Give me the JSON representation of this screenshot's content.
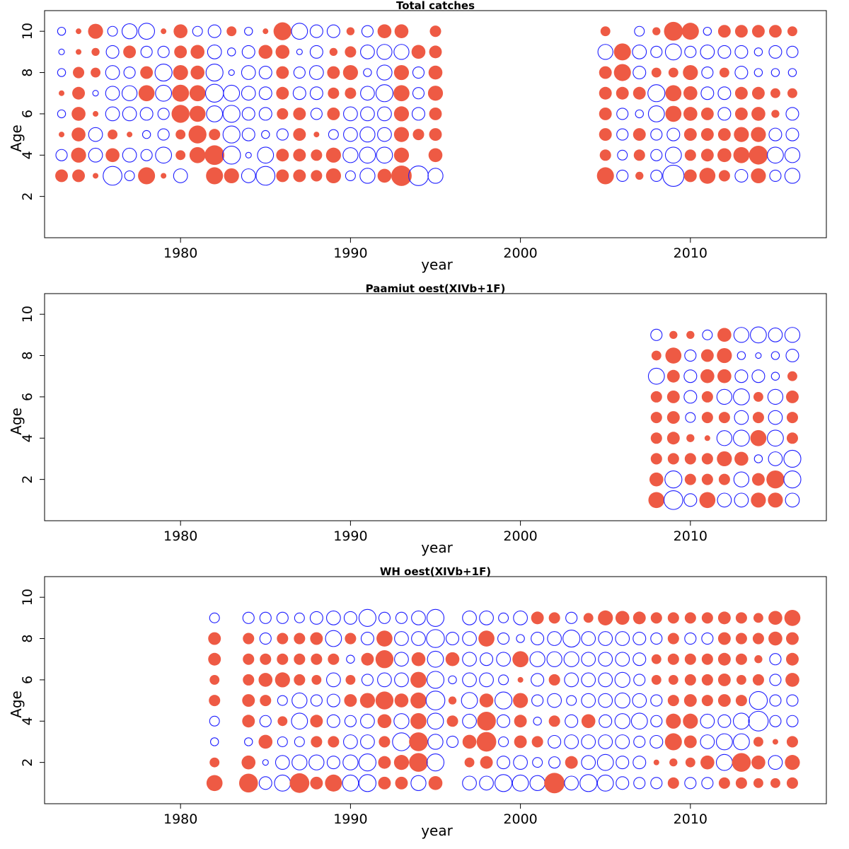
{
  "colors": {
    "positive": "#EE5A44",
    "negative": "#1F1FFF"
  },
  "chart_data": [
    {
      "type": "scatter",
      "subtype": "bubble (residuals)",
      "title": "Total catches",
      "xlabel": "year",
      "ylabel": "Age",
      "xlim": [
        1972,
        2018
      ],
      "ylim": [
        0,
        11
      ],
      "xticks": [
        "1980",
        "1990",
        "2000",
        "2010"
      ],
      "yticks": [
        "2",
        "4",
        "6",
        "8",
        "10"
      ],
      "grid": false,
      "years": [
        1973,
        1974,
        1975,
        1976,
        1977,
        1978,
        1979,
        1980,
        1981,
        1982,
        1983,
        1984,
        1985,
        1986,
        1987,
        1988,
        1989,
        1990,
        1991,
        1992,
        1993,
        1994,
        1995,
        2005,
        2006,
        2007,
        2008,
        2009,
        2010,
        2011,
        2012,
        2013,
        2014,
        2015,
        2016
      ],
      "ages": [
        3,
        4,
        5,
        6,
        7,
        8,
        9,
        10
      ],
      "residuals": [
        [
          0.5,
          -0.4,
          0.1,
          -0.2,
          0.1,
          -0.2,
          -0.1,
          -0.2
        ],
        [
          0.5,
          0.7,
          0.6,
          0.6,
          0.5,
          0.4,
          0.1,
          0.1
        ],
        [
          0.1,
          -0.6,
          -0.6,
          0.1,
          -0.1,
          0.3,
          0.2,
          0.7
        ],
        [
          -1.1,
          0.6,
          0.3,
          -0.6,
          -0.6,
          -0.6,
          -0.5,
          -0.3
        ],
        [
          -0.3,
          -0.6,
          0.1,
          -0.6,
          -0.7,
          -0.4,
          0.5,
          -0.7
        ],
        [
          0.9,
          -0.4,
          -0.2,
          -0.5,
          0.8,
          0.5,
          -0.4,
          -0.8
        ],
        [
          0.1,
          -0.8,
          -0.4,
          -0.4,
          -0.8,
          -0.9,
          -0.4,
          0.1
        ],
        [
          -0.6,
          0.3,
          0.3,
          1.0,
          0.9,
          0.7,
          0.5,
          0.6
        ],
        [
          0.0,
          0.8,
          1.0,
          0.8,
          0.8,
          0.6,
          0.6,
          -0.3
        ],
        [
          0.9,
          1.2,
          0.4,
          -0.8,
          -1.0,
          -0.9,
          -0.6,
          -0.5
        ],
        [
          0.7,
          -1.0,
          -0.9,
          -0.9,
          -0.8,
          -0.1,
          -0.2,
          0.3
        ],
        [
          -0.6,
          -0.1,
          -0.5,
          -0.5,
          -0.6,
          -0.6,
          -0.5,
          -0.2
        ],
        [
          -1.1,
          -0.8,
          -0.2,
          -0.5,
          -0.5,
          -0.5,
          0.6,
          0.1
        ],
        [
          0.5,
          0.5,
          -0.4,
          0.4,
          0.5,
          0.5,
          0.6,
          1.0
        ],
        [
          0.5,
          0.5,
          0.5,
          0.5,
          -0.5,
          -0.4,
          -0.1,
          -0.8
        ],
        [
          0.4,
          0.4,
          0.1,
          -0.4,
          -0.5,
          -0.6,
          -0.5,
          -0.5
        ],
        [
          0.7,
          0.7,
          -0.3,
          0.5,
          0.4,
          0.5,
          0.2,
          -0.5
        ],
        [
          -0.3,
          -0.7,
          -0.6,
          -0.6,
          0.4,
          0.7,
          0.4,
          0.2
        ],
        [
          -0.7,
          -0.8,
          -0.7,
          -0.6,
          -0.6,
          -0.2,
          -0.6,
          -0.4
        ],
        [
          0.6,
          -0.8,
          -0.6,
          -0.6,
          -0.9,
          -0.7,
          -0.7,
          0.6
        ],
        [
          1.3,
          0.7,
          0.7,
          0.7,
          0.8,
          0.7,
          -0.7,
          0.6
        ],
        [
          -1.2,
          0.0,
          0.4,
          -0.5,
          -0.4,
          -0.4,
          0.6,
          0.0
        ],
        [
          -0.7,
          0.6,
          0.5,
          0.5,
          0.7,
          0.6,
          0.5,
          0.4
        ],
        [
          0.9,
          0.4,
          0.5,
          0.5,
          0.5,
          0.5,
          -0.7,
          0.3
        ],
        [
          -0.4,
          -0.3,
          -0.4,
          -0.4,
          0.5,
          0.9,
          0.9,
          0.0
        ],
        [
          0.2,
          0.4,
          0.5,
          -0.2,
          0.5,
          -0.5,
          -0.6,
          -0.3
        ],
        [
          -0.4,
          -0.4,
          -0.4,
          -0.8,
          -0.9,
          0.3,
          -0.4,
          0.2
        ],
        [
          -1.4,
          -0.8,
          -0.5,
          0.8,
          0.8,
          0.3,
          -0.8,
          1.1
        ],
        [
          0.5,
          0.4,
          0.5,
          0.6,
          0.6,
          0.7,
          -0.4,
          0.9
        ],
        [
          0.8,
          0.5,
          0.5,
          0.5,
          -0.5,
          -0.4,
          -0.6,
          -0.2
        ],
        [
          0.4,
          0.6,
          0.5,
          -0.5,
          -0.5,
          0.3,
          -0.5,
          0.5
        ],
        [
          -0.5,
          0.8,
          0.7,
          0.5,
          0.5,
          -0.5,
          -0.5,
          0.5
        ],
        [
          0.7,
          1.1,
          0.7,
          0.6,
          0.5,
          -0.2,
          -0.2,
          0.5
        ],
        [
          -0.4,
          -0.8,
          -0.5,
          0.2,
          0.3,
          -0.2,
          -0.5,
          0.5
        ],
        [
          -0.7,
          -0.7,
          -0.5,
          -0.5,
          0.3,
          -0.2,
          -0.4,
          0.3
        ]
      ]
    },
    {
      "type": "scatter",
      "subtype": "bubble (residuals)",
      "title": "Paamiut    oest(XIVb+1F)",
      "xlabel": "year",
      "ylabel": "Age",
      "xlim": [
        1972,
        2018
      ],
      "ylim": [
        0,
        11
      ],
      "xticks": [
        "1980",
        "1990",
        "2000",
        "2010"
      ],
      "yticks": [
        "2",
        "4",
        "6",
        "8",
        "10"
      ],
      "grid": false,
      "years": [
        2008,
        2009,
        2010,
        2011,
        2012,
        2013,
        2014,
        2015,
        2016
      ],
      "ages": [
        1,
        2,
        3,
        4,
        5,
        6,
        7,
        8,
        9
      ],
      "residuals": [
        [
          0.8,
          0.6,
          0.4,
          0.4,
          0.4,
          0.4,
          -0.8,
          0.3,
          -0.4
        ],
        [
          -1.1,
          -0.9,
          0.4,
          0.5,
          0.5,
          0.5,
          0.5,
          0.8,
          0.2
        ],
        [
          -0.5,
          0.4,
          0.4,
          0.2,
          -0.3,
          -0.5,
          -0.5,
          -0.4,
          0.2
        ],
        [
          0.8,
          0.4,
          0.4,
          0.1,
          0.4,
          0.4,
          0.6,
          0.5,
          -0.3
        ],
        [
          -0.6,
          0.4,
          0.7,
          -0.7,
          0.4,
          -0.7,
          0.6,
          0.7,
          0.6
        ],
        [
          -0.6,
          -0.7,
          0.6,
          -0.8,
          -0.6,
          -0.8,
          -0.5,
          -0.2,
          -0.7
        ],
        [
          0.7,
          0.5,
          -0.2,
          0.8,
          0.4,
          0.3,
          -0.5,
          -0.1,
          -0.8
        ],
        [
          0.7,
          1.0,
          -0.6,
          -0.8,
          -0.6,
          -0.7,
          -0.2,
          -0.2,
          -0.6
        ],
        [
          -0.6,
          -0.9,
          -0.9,
          0.4,
          0.4,
          0.5,
          0.3,
          -0.5,
          -0.7
        ]
      ]
    },
    {
      "type": "scatter",
      "subtype": "bubble (residuals)",
      "title": "WH    oest(XIVb+1F)",
      "xlabel": "year",
      "ylabel": "Age",
      "xlim": [
        1972,
        2018
      ],
      "ylim": [
        0,
        11
      ],
      "xticks": [
        "1980",
        "1990",
        "2000",
        "2010"
      ],
      "yticks": [
        "2",
        "4",
        "6",
        "8",
        "10"
      ],
      "grid": false,
      "years": [
        1982,
        1984,
        1985,
        1986,
        1987,
        1988,
        1989,
        1990,
        1991,
        1992,
        1993,
        1994,
        1995,
        1996,
        1997,
        1998,
        1999,
        2000,
        2001,
        2002,
        2003,
        2004,
        2005,
        2006,
        2007,
        2008,
        2009,
        2010,
        2011,
        2012,
        2013,
        2014,
        2015,
        2016
      ],
      "ages": [
        1,
        2,
        3,
        4,
        5,
        6,
        7,
        8,
        9
      ],
      "residuals": [
        [
          0.8,
          0.3,
          -0.2,
          -0.3,
          0.4,
          0.3,
          0.5,
          0.5,
          -0.3
        ],
        [
          1.1,
          0.6,
          -0.2,
          0.5,
          0.5,
          0.4,
          0.4,
          0.4,
          -0.4
        ],
        [
          -0.5,
          -0.1,
          0.6,
          -0.4,
          0.4,
          0.6,
          0.4,
          -0.4,
          -0.4
        ],
        [
          -0.8,
          -0.6,
          -0.3,
          0.3,
          -0.3,
          0.7,
          0.4,
          0.4,
          -0.4
        ],
        [
          1.2,
          -0.7,
          -0.3,
          -0.8,
          -0.7,
          0.4,
          0.4,
          0.4,
          -0.3
        ],
        [
          0.5,
          -0.7,
          0.4,
          0.5,
          -0.4,
          0.3,
          0.4,
          0.5,
          -0.5
        ],
        [
          0.9,
          -0.5,
          0.4,
          -0.5,
          -0.5,
          -0.6,
          0.4,
          -0.8,
          -0.6
        ],
        [
          -0.8,
          -0.7,
          -0.6,
          -0.4,
          0.5,
          0.3,
          -0.2,
          0.4,
          -0.5
        ],
        [
          -0.9,
          -0.9,
          -0.6,
          -0.6,
          0.7,
          -0.4,
          0.5,
          -0.5,
          -0.9
        ],
        [
          0.5,
          0.5,
          0.4,
          0.6,
          1.0,
          -0.6,
          1.0,
          0.8,
          -0.4
        ],
        [
          0.5,
          0.7,
          -1.0,
          -0.7,
          0.6,
          -0.6,
          -0.6,
          -0.6,
          -0.4
        ],
        [
          -0.7,
          1.1,
          1.1,
          0.8,
          0.8,
          0.8,
          0.6,
          -0.6,
          -0.6
        ],
        [
          0.6,
          -0.9,
          -0.7,
          -0.8,
          -1.1,
          -0.9,
          -0.8,
          -1.0,
          -0.9
        ],
        [
          0.0,
          0.0,
          -0.4,
          0.4,
          0.2,
          -0.2,
          0.6,
          -0.5,
          0.0
        ],
        [
          -0.6,
          0.3,
          0.6,
          -0.6,
          -0.8,
          -0.6,
          -0.6,
          -0.6,
          -0.6
        ],
        [
          -0.6,
          0.5,
          1.2,
          1.1,
          0.6,
          -0.6,
          -0.5,
          0.8,
          -0.6
        ],
        [
          -0.9,
          -0.5,
          -0.3,
          -0.5,
          -0.9,
          -0.3,
          -0.6,
          -0.4,
          -0.3
        ],
        [
          -0.8,
          -0.6,
          0.5,
          0.5,
          0.7,
          0.1,
          0.8,
          -0.2,
          -0.6
        ],
        [
          -0.7,
          -0.3,
          0.4,
          -0.2,
          -0.4,
          -0.5,
          -0.7,
          -0.5,
          0.5
        ],
        [
          1.3,
          -0.4,
          -0.5,
          0.4,
          -0.6,
          0.4,
          -0.7,
          -0.6,
          0.4
        ],
        [
          -0.6,
          0.5,
          -0.6,
          -0.5,
          -0.3,
          -0.6,
          -0.7,
          -0.9,
          -0.4
        ],
        [
          -0.9,
          -0.6,
          -0.6,
          0.6,
          -0.6,
          -0.6,
          -0.6,
          -0.6,
          0.3
        ],
        [
          -0.8,
          -0.8,
          -0.6,
          -0.5,
          -0.6,
          -0.6,
          -0.6,
          -0.6,
          0.7
        ],
        [
          -0.5,
          -0.5,
          -0.6,
          -0.7,
          -0.7,
          -0.7,
          -0.6,
          -0.6,
          0.6
        ],
        [
          -0.4,
          -0.5,
          -0.4,
          -0.8,
          -0.6,
          -0.4,
          -0.5,
          -0.5,
          0.5
        ],
        [
          -0.4,
          0.1,
          -0.5,
          -0.4,
          -0.4,
          0.3,
          0.3,
          -0.4,
          0.4
        ],
        [
          0.4,
          0.2,
          0.9,
          0.7,
          0.4,
          0.3,
          0.4,
          0.4,
          0.4
        ],
        [
          -0.4,
          0.3,
          0.5,
          0.7,
          0.5,
          0.4,
          0.4,
          -0.4,
          0.4
        ],
        [
          -0.4,
          0.6,
          -0.6,
          -0.6,
          0.4,
          0.4,
          0.4,
          -0.4,
          0.4
        ],
        [
          0.4,
          -0.8,
          -0.8,
          -0.5,
          0.5,
          0.5,
          0.5,
          0.5,
          0.5
        ],
        [
          0.4,
          1.1,
          -0.8,
          -0.8,
          0.4,
          0.3,
          0.4,
          0.4,
          0.4
        ],
        [
          0.3,
          0.6,
          0.3,
          -1.2,
          -1.0,
          0.4,
          0.2,
          0.4,
          0.3
        ],
        [
          0.3,
          -0.6,
          0.1,
          -0.4,
          -0.4,
          -0.4,
          -0.4,
          0.6,
          0.6
        ],
        [
          0.4,
          0.7,
          0.4,
          -0.4,
          -0.4,
          0.6,
          0.5,
          0.5,
          0.8
        ]
      ]
    }
  ]
}
